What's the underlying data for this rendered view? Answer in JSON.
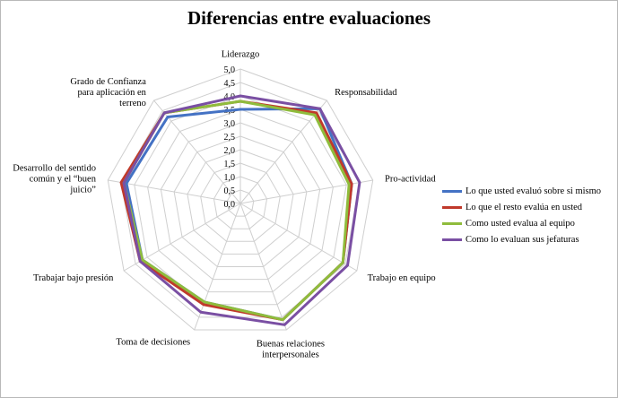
{
  "chart_data": {
    "type": "radar",
    "title": "Diferencias entre evaluaciones",
    "axes": [
      [
        "Liderazgo"
      ],
      [
        "Responsabilidad"
      ],
      [
        "Pro-actividad"
      ],
      [
        "Trabajo en equipo"
      ],
      [
        "Buenas relaciones",
        "interpersonales"
      ],
      [
        "Toma de decisiones"
      ],
      [
        "Trabajar bajo presión"
      ],
      [
        "Desarrollo del sentido",
        "común y el “buen",
        "juicio”"
      ],
      [
        "Grado de Confianza",
        "para aplicación en",
        "terreno"
      ]
    ],
    "rlim": [
      0,
      5
    ],
    "ticks": [
      "0,0",
      "0,5",
      "1,0",
      "1,5",
      "2,0",
      "2,5",
      "3,0",
      "3,5",
      "4,0",
      "4,5",
      "5,0"
    ],
    "series": [
      {
        "name": "Lo que usted evaluó sobre si mismo",
        "color": "#4472c4",
        "values": [
          3.5,
          4.6,
          4.2,
          4.4,
          4.6,
          3.9,
          4.2,
          4.3,
          4.2
        ]
      },
      {
        "name": "Lo que el resto evalúa en usted",
        "color": "#c0392b",
        "values": [
          3.8,
          4.4,
          4.2,
          4.4,
          4.6,
          4.0,
          4.3,
          4.5,
          4.4
        ]
      },
      {
        "name": "Como usted evalua al equipo",
        "color": "#8fbc3c",
        "values": [
          3.8,
          4.3,
          4.1,
          4.4,
          4.6,
          3.9,
          4.2,
          4.4,
          4.4
        ]
      },
      {
        "name": "Como lo evaluan sus jefaturas",
        "color": "#7a4fa3",
        "values": [
          4.0,
          4.6,
          4.5,
          4.6,
          4.8,
          4.3,
          4.3,
          4.4,
          4.4
        ]
      }
    ],
    "legend_position": "right",
    "grid": true
  }
}
